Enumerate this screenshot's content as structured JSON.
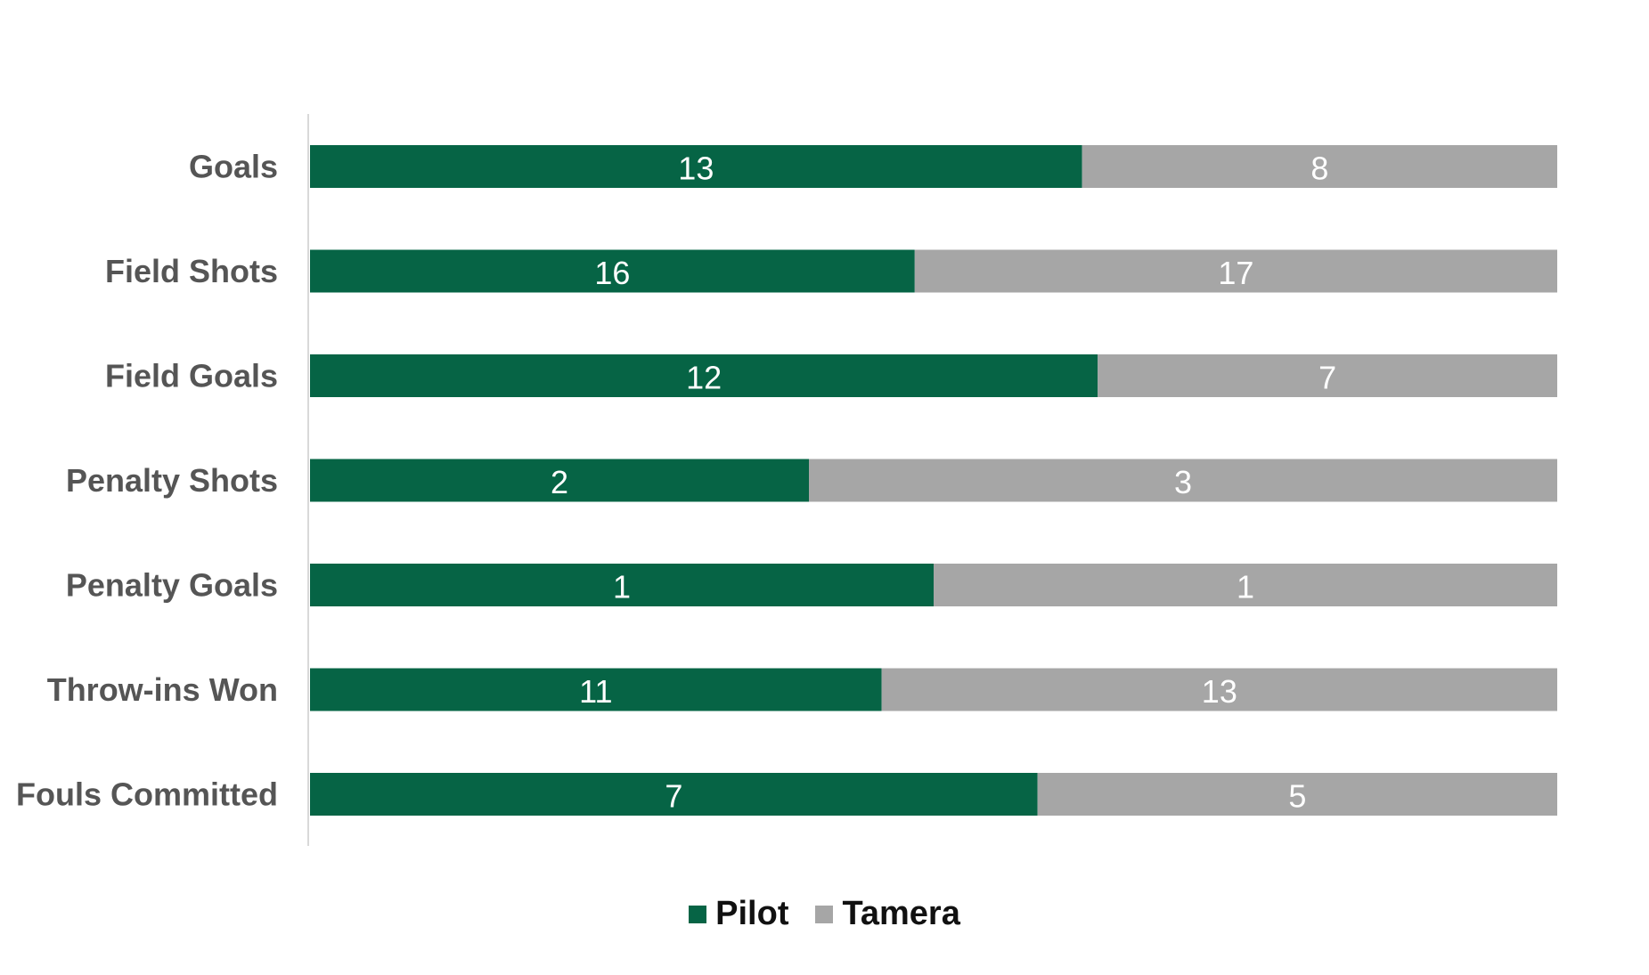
{
  "chart_data": {
    "type": "bar",
    "orientation": "horizontal",
    "stacking": "percent",
    "categories": [
      "Goals",
      "Field Shots",
      "Field Goals",
      "Penalty Shots",
      "Penalty Goals",
      "Throw-ins Won",
      "Fouls Committed"
    ],
    "series": [
      {
        "name": "Pilot",
        "color": "#066445",
        "values": [
          13,
          16,
          12,
          2,
          1,
          11,
          7
        ]
      },
      {
        "name": "Tamera",
        "color": "#A6A6A6",
        "values": [
          8,
          17,
          7,
          3,
          1,
          13,
          5
        ]
      }
    ],
    "legend_position": "bottom",
    "grid": false
  }
}
